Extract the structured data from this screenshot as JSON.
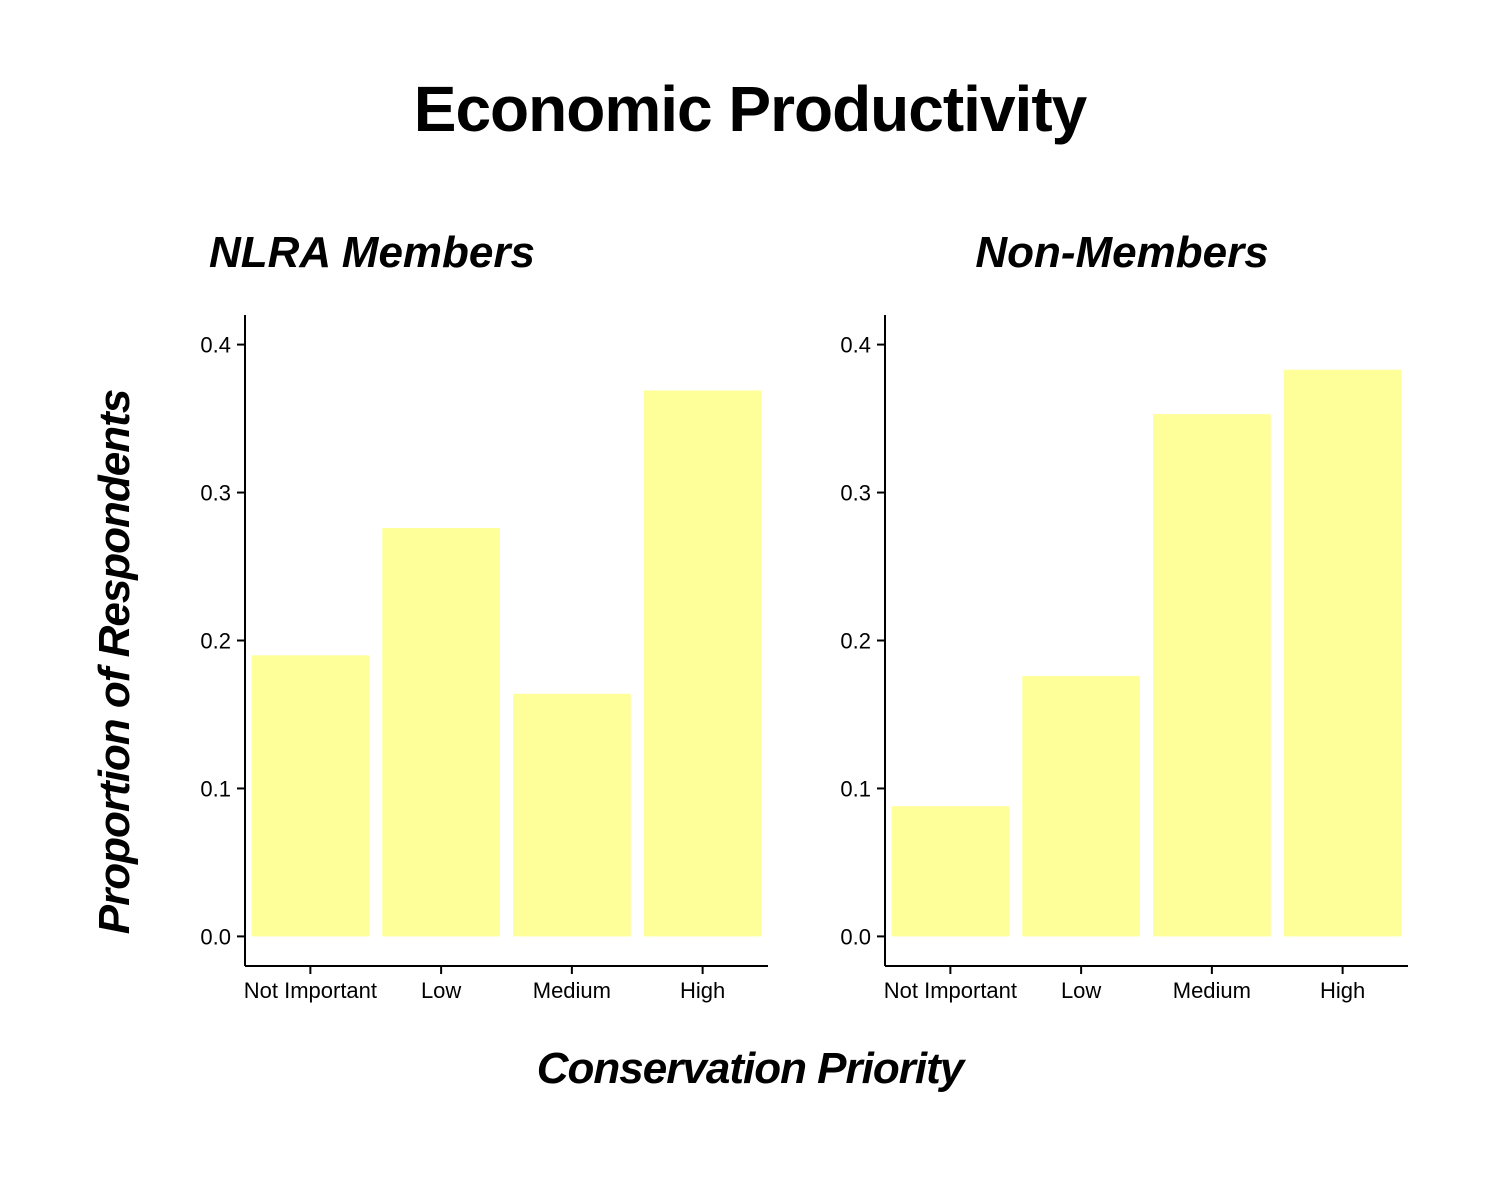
{
  "title": "Economic Productivity",
  "xlabel": "Conservation Priority",
  "ylabel": "Proportion of Respondents",
  "colors": {
    "bar": "#ffff99",
    "axis": "#000000"
  },
  "chart_data": [
    {
      "type": "bar",
      "title": "NLRA Members",
      "categories": [
        "Not Important",
        "Low",
        "Medium",
        "High"
      ],
      "values": [
        0.19,
        0.276,
        0.164,
        0.369
      ],
      "ylim": [
        -0.02,
        0.42
      ],
      "yticks": [
        0.0,
        0.1,
        0.2,
        0.3,
        0.4
      ],
      "ytick_labels": [
        "0.0",
        "0.1",
        "0.2",
        "0.3",
        "0.4"
      ],
      "grid": false
    },
    {
      "type": "bar",
      "title": "Non-Members",
      "categories": [
        "Not Important",
        "Low",
        "Medium",
        "High"
      ],
      "values": [
        0.088,
        0.176,
        0.353,
        0.383
      ],
      "ylim": [
        -0.02,
        0.42
      ],
      "yticks": [
        0.0,
        0.1,
        0.2,
        0.3,
        0.4
      ],
      "ytick_labels": [
        "0.0",
        "0.1",
        "0.2",
        "0.3",
        "0.4"
      ],
      "grid": false
    }
  ]
}
